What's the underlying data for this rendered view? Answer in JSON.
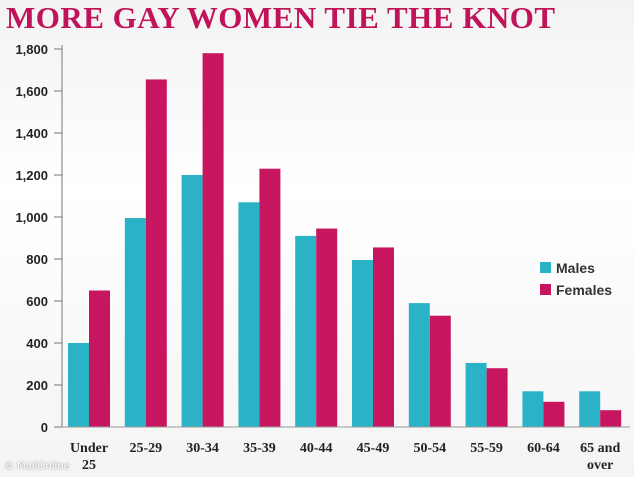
{
  "header": {
    "title": "MORE GAY WOMEN TIE THE KNOT"
  },
  "footer": {
    "watermark": "© MailOnline"
  },
  "colors": {
    "title": "#c0135a",
    "males": "#2ab3c6",
    "females": "#c8155f"
  },
  "chart_data": {
    "type": "bar",
    "title": "MORE GAY WOMEN TIE THE KNOT",
    "xlabel": "",
    "ylabel": "",
    "ylim": [
      0,
      1800
    ],
    "yticks": [
      0,
      200,
      400,
      600,
      800,
      "1,000",
      "1,200",
      "1,400",
      "1,600",
      "1,800"
    ],
    "grid": false,
    "legend_position": "right",
    "categories": [
      [
        "Under",
        "25"
      ],
      [
        "25-29"
      ],
      [
        "30-34"
      ],
      [
        "35-39"
      ],
      [
        "40-44"
      ],
      [
        "45-49"
      ],
      [
        "50-54"
      ],
      [
        "55-59"
      ],
      [
        "60-64"
      ],
      [
        "65 and",
        "over"
      ]
    ],
    "series": [
      {
        "name": "Males",
        "color": "#2ab3c6",
        "values": [
          400,
          995,
          1200,
          1070,
          910,
          795,
          590,
          305,
          170,
          170
        ]
      },
      {
        "name": "Females",
        "color": "#c8155f",
        "values": [
          650,
          1655,
          1780,
          1230,
          945,
          855,
          530,
          280,
          120,
          80
        ]
      }
    ]
  }
}
